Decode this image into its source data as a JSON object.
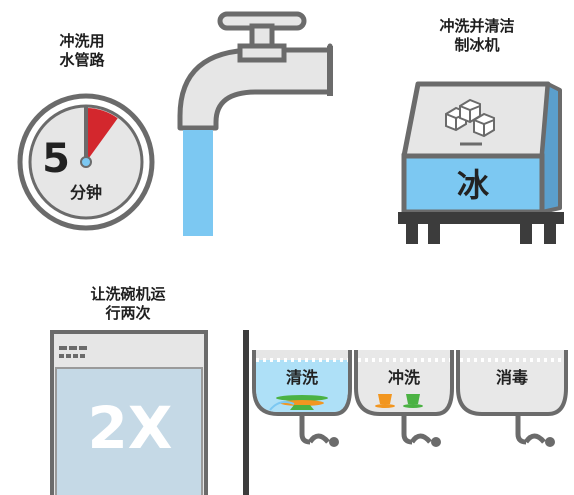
{
  "captions": {
    "flush_lines": "冲洗用\n水管路",
    "ice_machine": "冲洗并清洁\n制冰机",
    "dishwasher": "让洗碗机运\n行两次"
  },
  "timer": {
    "number": "5",
    "unit": "分钟",
    "elapsed_fraction": 0.1
  },
  "ice_label": "冰",
  "dishwasher_label": "2X",
  "sinks": [
    {
      "label": "清洗",
      "water_color": "#aee0f7"
    },
    {
      "label": "冲洗",
      "water_color": "#e8e8e8"
    },
    {
      "label": "消毒",
      "water_color": "#e8e8e8"
    }
  ],
  "colors": {
    "outline": "#6b6b6b",
    "fill_light": "#e6e6e6",
    "water": "#7cc8f2",
    "ice_blue": "#7cc8f2",
    "timer_red": "#d3272d",
    "dish_orange": "#f29620",
    "dish_green": "#4bb243"
  },
  "icons": [
    "stopwatch-icon",
    "faucet-icon",
    "ice-machine-icon",
    "ice-cubes-icon",
    "dishwasher-icon",
    "three-compartment-sink-icon"
  ]
}
